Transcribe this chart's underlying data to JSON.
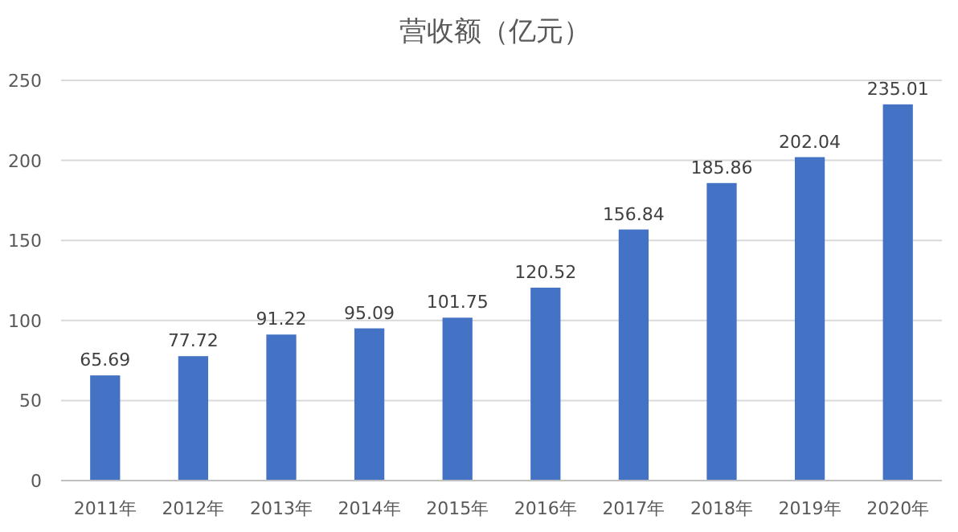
{
  "chart_data": {
    "type": "bar",
    "title": "营收额（亿元）",
    "categories": [
      "2011年",
      "2012年",
      "2013年",
      "2014年",
      "2015年",
      "2016年",
      "2017年",
      "2018年",
      "2019年",
      "2020年"
    ],
    "values": [
      65.69,
      77.72,
      91.22,
      95.09,
      101.75,
      120.52,
      156.84,
      185.86,
      202.04,
      235.01
    ],
    "color": "#4472c4",
    "ylim": [
      0,
      250
    ],
    "yticks": [
      0,
      50,
      100,
      150,
      200,
      250
    ],
    "grid": "y",
    "data_labels": true
  }
}
